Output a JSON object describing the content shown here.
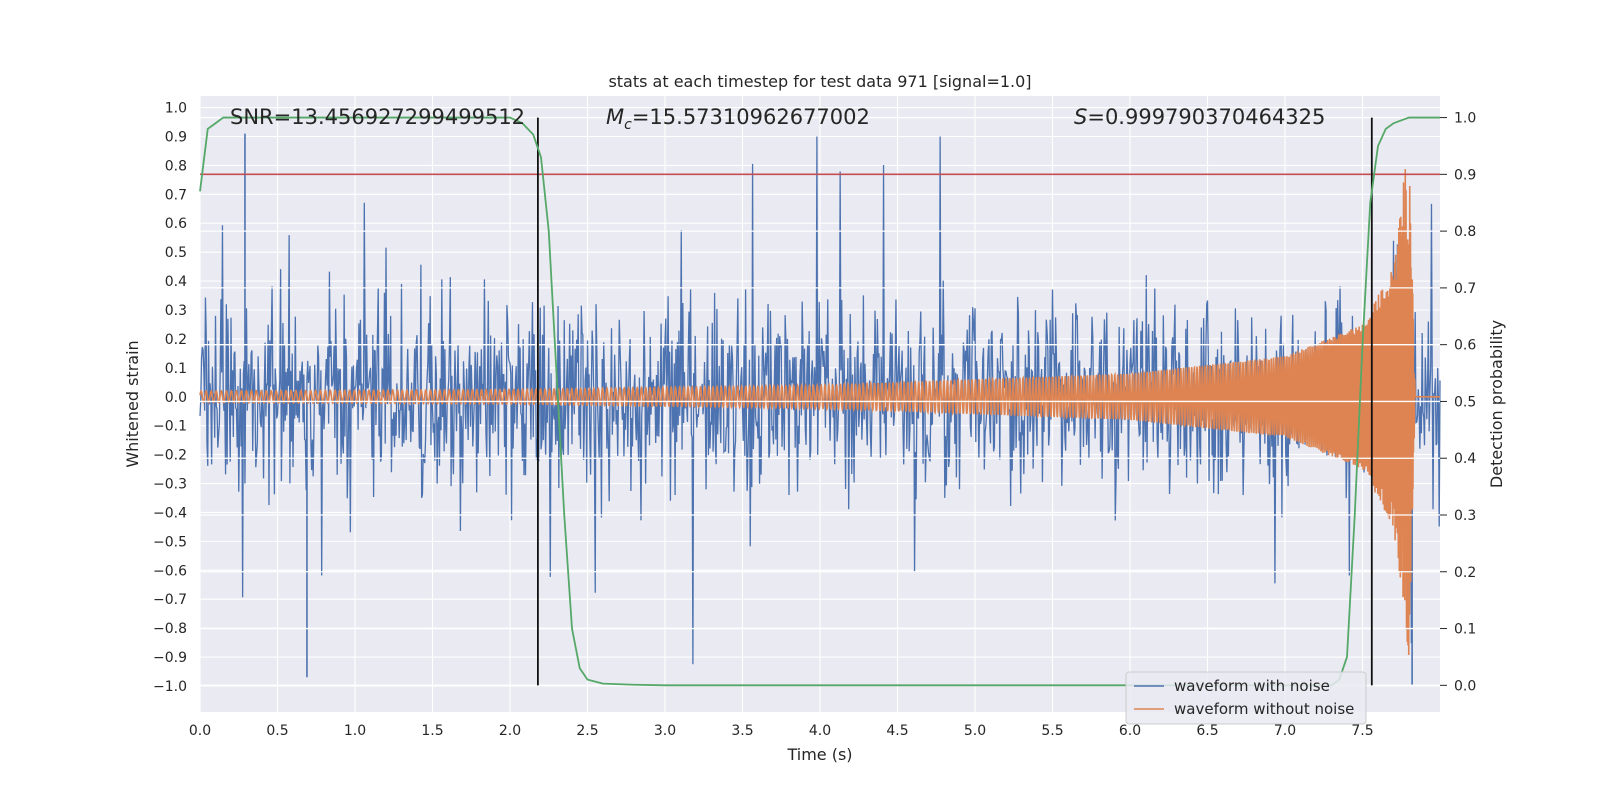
{
  "chart_data": {
    "type": "line",
    "title": "stats at each timestep for test data 971 [signal=1.0]",
    "xlabel": "Time (s)",
    "ylabel": "Whitened strain",
    "y2label": "Detection probability",
    "xlim": [
      0.0,
      8.0
    ],
    "ylim": [
      -1.09,
      1.04
    ],
    "y2lim": [
      -0.047,
      1.038
    ],
    "x_ticks": [
      "0.0",
      "0.5",
      "1.0",
      "1.5",
      "2.0",
      "2.5",
      "3.0",
      "3.5",
      "4.0",
      "4.5",
      "5.0",
      "5.5",
      "6.0",
      "6.5",
      "7.0",
      "7.5"
    ],
    "y_ticks": [
      "1.0",
      "0.9",
      "0.8",
      "0.7",
      "0.6",
      "0.5",
      "0.4",
      "0.3",
      "0.2",
      "0.1",
      "0.0",
      "−0.1",
      "−0.2",
      "−0.3",
      "−0.4",
      "−0.5",
      "−0.6",
      "−0.7",
      "−0.8",
      "−0.9",
      "−1.0"
    ],
    "y2_ticks": [
      "1.0",
      "0.9",
      "0.8",
      "0.7",
      "0.6",
      "0.5",
      "0.4",
      "0.3",
      "0.2",
      "0.1",
      "0.0"
    ],
    "grid": true,
    "legend_placement": "lower-right",
    "annotations": {
      "snr": "SNR=13.456927299499512",
      "mc_symbol": "M",
      "mc_sub": "c",
      "mc_value": "=15.57310962677002",
      "s_symbol": "S",
      "s_value": "=0.999790370464325"
    },
    "series": [
      {
        "name": "waveform with noise",
        "color": "#4c72b0",
        "description_values": "dense noise between about -1.0 and 0.92",
        "peaks_x": [
          0.29,
          0.69,
          7.82
        ],
        "peaks_y": [
          0.91,
          -0.97,
          -1.0
        ]
      },
      {
        "name": "waveform without noise",
        "color": "#dd8452",
        "envelope_x": [
          0.0,
          2.0,
          4.0,
          6.0,
          7.0,
          7.5,
          7.7,
          7.8,
          7.84
        ],
        "envelope_y": [
          0.02,
          0.025,
          0.04,
          0.08,
          0.14,
          0.25,
          0.45,
          0.9,
          0.0
        ]
      },
      {
        "name": "detection probability",
        "color": "#55a868",
        "x": [
          0.0,
          0.05,
          0.1,
          0.15,
          2.0,
          2.08,
          2.15,
          2.2,
          2.25,
          2.3,
          2.35,
          2.4,
          2.45,
          2.5,
          2.6,
          2.8,
          3.0,
          7.3,
          7.35,
          7.4,
          7.45,
          7.5,
          7.55,
          7.6,
          7.65,
          7.7,
          7.8,
          8.0
        ],
        "y": [
          0.87,
          0.98,
          0.99,
          1.0,
          1.0,
          0.99,
          0.97,
          0.93,
          0.8,
          0.55,
          0.3,
          0.1,
          0.03,
          0.01,
          0.003,
          0.001,
          0.0,
          0.0,
          0.01,
          0.05,
          0.3,
          0.6,
          0.85,
          0.95,
          0.98,
          0.99,
          1.0,
          1.0
        ]
      }
    ],
    "threshold": {
      "y2": 0.9,
      "color": "#c44e52"
    },
    "vlines_x": [
      2.18,
      7.56
    ]
  }
}
